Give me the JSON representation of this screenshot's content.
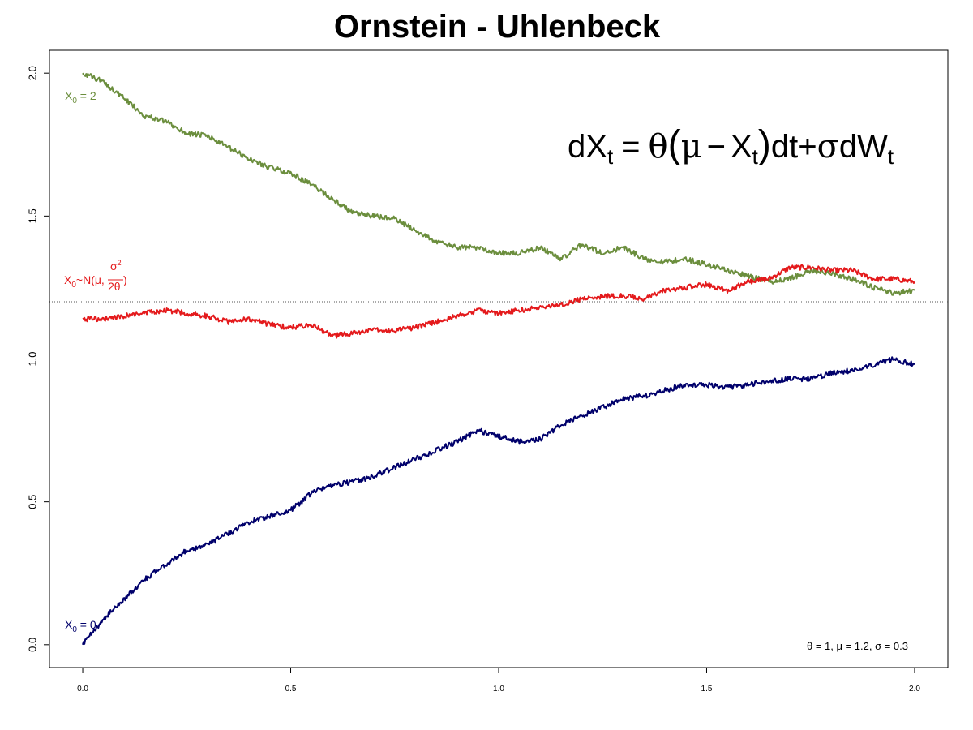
{
  "chart_data": {
    "type": "line",
    "title": "Ornstein - Uhlenbeck",
    "xlabel": "",
    "ylabel": "",
    "xlim": [
      -0.08,
      2.08
    ],
    "ylim": [
      -0.08,
      2.08
    ],
    "x_ticks": [
      "0.0",
      "0.5",
      "1.0",
      "1.5",
      "2.0"
    ],
    "y_ticks": [
      "0.0",
      "0.5",
      "1.0",
      "1.5",
      "2.0"
    ],
    "grid": false,
    "reference_line": {
      "y": 1.2,
      "style": "dotted",
      "color": "#555555"
    },
    "equation": {
      "lhs": "dX",
      "lhs_sub": "t",
      "eq": "=",
      "theta": "θ",
      "open": "(",
      "mu": "μ",
      "minus": "−",
      "x": "X",
      "x_sub": "t",
      "close": ")",
      "dt": "dt+",
      "sigma": "σ",
      "dw": "dW",
      "dw_sub": "t"
    },
    "parameters_label": "θ = 1, μ = 1.2, σ = 0.3",
    "series": [
      {
        "label_main": "X",
        "label_sub": "0",
        "label_rest": " = 2",
        "color": "#6b8e3d",
        "x": [
          0,
          0.05,
          0.1,
          0.15,
          0.2,
          0.25,
          0.3,
          0.35,
          0.4,
          0.45,
          0.5,
          0.55,
          0.6,
          0.65,
          0.7,
          0.75,
          0.8,
          0.85,
          0.9,
          0.95,
          1.0,
          1.05,
          1.1,
          1.15,
          1.2,
          1.25,
          1.3,
          1.35,
          1.4,
          1.45,
          1.5,
          1.55,
          1.6,
          1.65,
          1.7,
          1.75,
          1.8,
          1.85,
          1.9,
          1.95,
          2.0
        ],
        "y": [
          2.0,
          1.97,
          1.91,
          1.85,
          1.83,
          1.79,
          1.78,
          1.74,
          1.7,
          1.67,
          1.65,
          1.61,
          1.56,
          1.51,
          1.5,
          1.49,
          1.45,
          1.41,
          1.39,
          1.39,
          1.37,
          1.37,
          1.39,
          1.35,
          1.4,
          1.37,
          1.39,
          1.35,
          1.34,
          1.35,
          1.33,
          1.31,
          1.29,
          1.27,
          1.28,
          1.31,
          1.3,
          1.28,
          1.25,
          1.23,
          1.24
        ]
      },
      {
        "label_main": "X",
        "label_sub": "0",
        "label_rest": "~N(μ,",
        "label_frac_num": "σ",
        "label_frac_sup": "2",
        "label_frac_den": "2θ",
        "label_close": ")",
        "color": "#e41a1c",
        "x": [
          0,
          0.05,
          0.1,
          0.15,
          0.2,
          0.25,
          0.3,
          0.35,
          0.4,
          0.45,
          0.5,
          0.55,
          0.6,
          0.65,
          0.7,
          0.75,
          0.8,
          0.85,
          0.9,
          0.95,
          1.0,
          1.05,
          1.1,
          1.15,
          1.2,
          1.25,
          1.3,
          1.35,
          1.4,
          1.45,
          1.5,
          1.55,
          1.6,
          1.65,
          1.7,
          1.75,
          1.8,
          1.85,
          1.9,
          1.95,
          2.0
        ],
        "y": [
          1.14,
          1.14,
          1.15,
          1.16,
          1.17,
          1.16,
          1.15,
          1.13,
          1.14,
          1.12,
          1.11,
          1.12,
          1.08,
          1.09,
          1.1,
          1.1,
          1.11,
          1.13,
          1.15,
          1.17,
          1.16,
          1.17,
          1.18,
          1.19,
          1.21,
          1.22,
          1.22,
          1.21,
          1.24,
          1.25,
          1.26,
          1.24,
          1.27,
          1.28,
          1.32,
          1.32,
          1.31,
          1.31,
          1.28,
          1.28,
          1.27
        ]
      },
      {
        "label_main": "X",
        "label_sub": "0",
        "label_rest": " = 0",
        "color": "#00006b",
        "x": [
          0,
          0.05,
          0.1,
          0.15,
          0.2,
          0.25,
          0.3,
          0.35,
          0.4,
          0.45,
          0.5,
          0.55,
          0.6,
          0.65,
          0.7,
          0.75,
          0.8,
          0.85,
          0.9,
          0.95,
          1.0,
          1.05,
          1.1,
          1.15,
          1.2,
          1.25,
          1.3,
          1.35,
          1.4,
          1.45,
          1.5,
          1.55,
          1.6,
          1.65,
          1.7,
          1.75,
          1.8,
          1.85,
          1.9,
          1.95,
          2.0
        ],
        "y": [
          0.0,
          0.09,
          0.16,
          0.23,
          0.28,
          0.33,
          0.35,
          0.39,
          0.43,
          0.45,
          0.47,
          0.53,
          0.56,
          0.57,
          0.59,
          0.62,
          0.65,
          0.68,
          0.71,
          0.75,
          0.73,
          0.71,
          0.72,
          0.77,
          0.8,
          0.83,
          0.86,
          0.87,
          0.89,
          0.91,
          0.91,
          0.9,
          0.91,
          0.92,
          0.93,
          0.93,
          0.95,
          0.96,
          0.98,
          1.0,
          0.98
        ]
      }
    ]
  }
}
